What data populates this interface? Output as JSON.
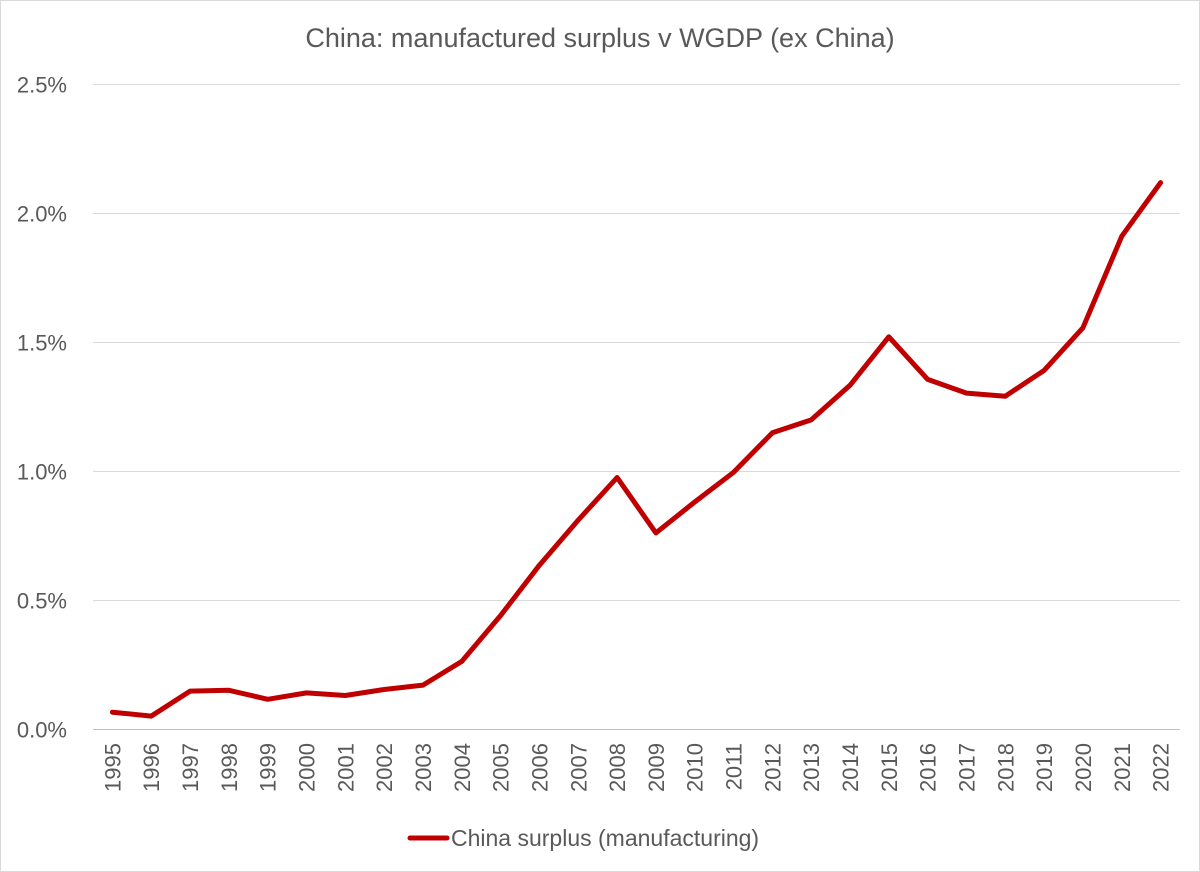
{
  "chart_data": {
    "type": "line",
    "title": "China: manufactured surplus v WGDP (ex China)",
    "xlabel": "",
    "ylabel": "",
    "ylim": [
      0,
      0.025
    ],
    "y_ticks": [
      0,
      0.005,
      0.01,
      0.015,
      0.02,
      0.025
    ],
    "y_tick_labels": [
      "0.0%",
      "0.5%",
      "1.0%",
      "1.5%",
      "2.0%",
      "2.5%"
    ],
    "grid": true,
    "legend_position": "bottom",
    "categories": [
      "1995",
      "1996",
      "1997",
      "1998",
      "1999",
      "2000",
      "2001",
      "2002",
      "2003",
      "2004",
      "2005",
      "2006",
      "2007",
      "2008",
      "2009",
      "2010",
      "2011",
      "2012",
      "2013",
      "2014",
      "2015",
      "2016",
      "2017",
      "2018",
      "2019",
      "2020",
      "2021",
      "2022"
    ],
    "series": [
      {
        "name": "China surplus (manufacturing)",
        "color": "#c00000",
        "values": [
          0.00065,
          0.0005,
          0.00147,
          0.0015,
          0.00115,
          0.0014,
          0.0013,
          0.00153,
          0.0017,
          0.00262,
          0.0044,
          0.00635,
          0.0081,
          0.00975,
          0.0076,
          0.0088,
          0.00995,
          0.01148,
          0.01198,
          0.01332,
          0.0152,
          0.01355,
          0.01302,
          0.0129,
          0.0139,
          0.01555,
          0.0191,
          0.02118
        ]
      }
    ]
  }
}
